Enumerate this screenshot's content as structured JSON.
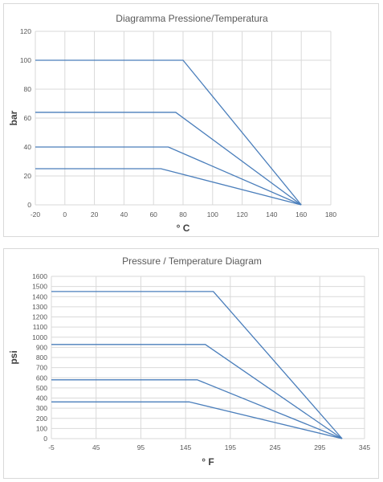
{
  "chart_data": [
    {
      "type": "line",
      "title": "Diagramma Pressione/Temperatura",
      "xlabel": "° C",
      "ylabel": "bar",
      "xlim": [
        -20,
        180
      ],
      "ylim": [
        0,
        120
      ],
      "x_ticks": [
        -20,
        0,
        20,
        40,
        60,
        80,
        100,
        120,
        140,
        160,
        180
      ],
      "y_ticks": [
        0,
        20,
        40,
        60,
        80,
        100,
        120
      ],
      "grid": true,
      "line_color": "#4a7ebb",
      "series": [
        {
          "x": [
            -20,
            80,
            160
          ],
          "y": [
            100,
            100,
            0
          ]
        },
        {
          "x": [
            -20,
            75,
            160
          ],
          "y": [
            64,
            64,
            0
          ]
        },
        {
          "x": [
            -20,
            70,
            160
          ],
          "y": [
            40,
            40,
            0
          ]
        },
        {
          "x": [
            -20,
            65,
            160
          ],
          "y": [
            25,
            25,
            0
          ]
        }
      ]
    },
    {
      "type": "line",
      "title": "Pressure / Temperature Diagram",
      "xlabel": "° F",
      "ylabel": "psi",
      "xlim": [
        -5,
        345
      ],
      "ylim": [
        0,
        1600
      ],
      "x_ticks": [
        -5,
        45,
        95,
        145,
        195,
        245,
        295,
        345
      ],
      "y_ticks": [
        0,
        100,
        200,
        300,
        400,
        500,
        600,
        700,
        800,
        900,
        1000,
        1100,
        1200,
        1300,
        1400,
        1500,
        1600
      ],
      "grid": true,
      "line_color": "#4a7ebb",
      "series": [
        {
          "x": [
            -5,
            176,
            320
          ],
          "y": [
            1450,
            1450,
            0
          ]
        },
        {
          "x": [
            -5,
            167,
            320
          ],
          "y": [
            928,
            928,
            0
          ]
        },
        {
          "x": [
            -5,
            158,
            320
          ],
          "y": [
            580,
            580,
            0
          ]
        },
        {
          "x": [
            -5,
            149,
            320
          ],
          "y": [
            362,
            362,
            0
          ]
        }
      ]
    }
  ]
}
